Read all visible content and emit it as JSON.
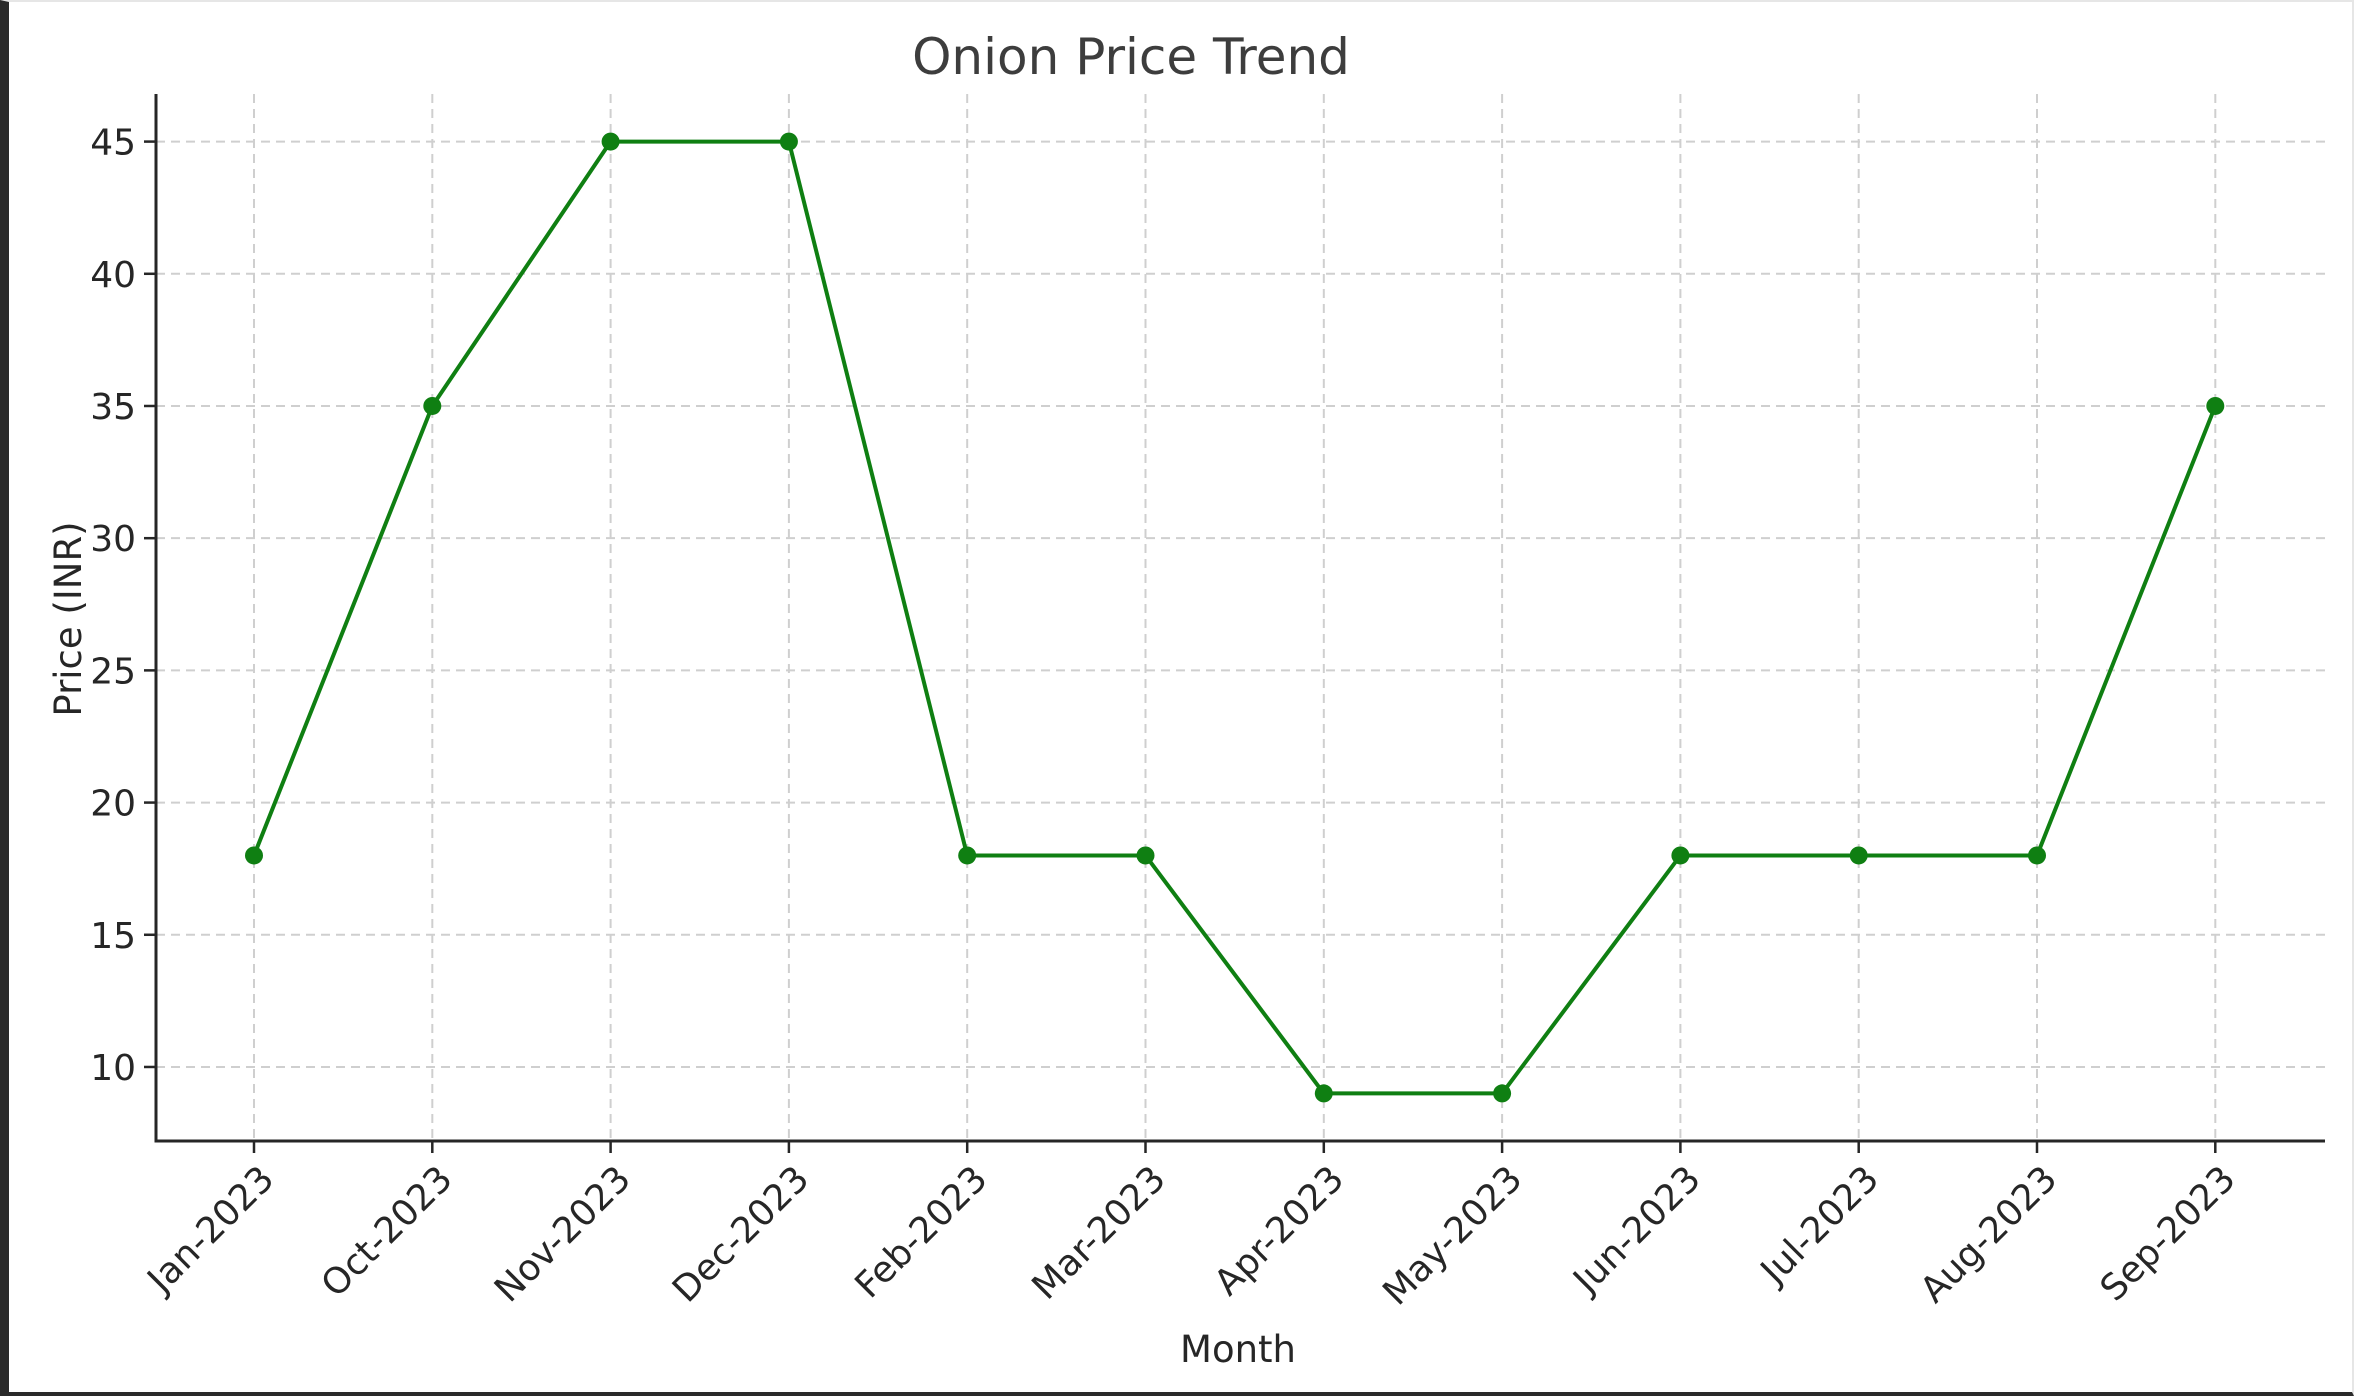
{
  "chart_data": {
    "type": "line",
    "title": "Onion Price Trend",
    "xlabel": "Month",
    "ylabel": "Price (INR)",
    "categories": [
      "Jan-2023",
      "Oct-2023",
      "Nov-2023",
      "Dec-2023",
      "Feb-2023",
      "Mar-2023",
      "Apr-2023",
      "May-2023",
      "Jun-2023",
      "Jul-2023",
      "Aug-2023",
      "Sep-2023"
    ],
    "series": [
      {
        "values": [
          18,
          35,
          45,
          45,
          18,
          18,
          9,
          9,
          18,
          18,
          18,
          35
        ],
        "color": "#0f7f12",
        "marker": "circle"
      }
    ],
    "yticks": [
      "10",
      "15",
      "20",
      "25",
      "30",
      "35",
      "40",
      "45"
    ],
    "ytick_values": [
      10,
      15,
      20,
      25,
      30,
      35,
      40,
      45
    ],
    "ylim": [
      7.2,
      46.8
    ],
    "grid": true,
    "legend": "none"
  }
}
